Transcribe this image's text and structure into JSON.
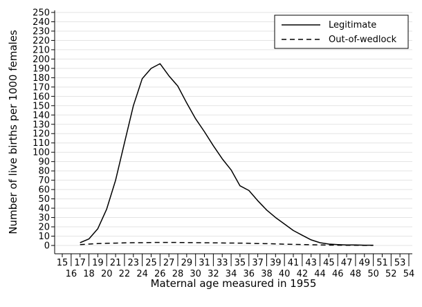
{
  "chart_data": {
    "type": "line",
    "xlabel": "Maternal age measured in 1955",
    "ylabel": "Number of live births per 1000 females",
    "xlim": [
      15,
      54
    ],
    "ylim": [
      0,
      250
    ],
    "x_ticks": [
      15,
      16,
      17,
      18,
      19,
      20,
      21,
      22,
      23,
      24,
      25,
      26,
      27,
      28,
      29,
      30,
      31,
      32,
      33,
      34,
      35,
      36,
      37,
      38,
      39,
      40,
      41,
      42,
      43,
      44,
      45,
      46,
      47,
      48,
      49,
      50,
      51,
      52,
      53,
      54
    ],
    "y_ticks": [
      0,
      10,
      20,
      30,
      40,
      50,
      60,
      70,
      80,
      90,
      100,
      110,
      120,
      130,
      140,
      150,
      160,
      170,
      180,
      190,
      200,
      210,
      220,
      230,
      240,
      250
    ],
    "grid": true,
    "legend_position": "top-right",
    "series": [
      {
        "name": "Legitimate",
        "style": "solid",
        "x": [
          17,
          18,
          19,
          20,
          21,
          22,
          23,
          24,
          25,
          26,
          27,
          28,
          29,
          30,
          31,
          32,
          33,
          34,
          35,
          36,
          37,
          38,
          39,
          40,
          41,
          42,
          43,
          44,
          45,
          46,
          47,
          48,
          49,
          50
        ],
        "values": [
          3,
          7,
          18,
          39,
          70,
          110,
          150,
          179,
          190,
          195,
          182,
          171,
          153,
          136,
          122,
          107,
          93,
          81,
          64,
          59,
          48,
          38,
          30,
          23,
          16,
          11,
          6,
          3,
          1.5,
          1,
          0.5,
          0.5,
          0.3,
          0.3
        ]
      },
      {
        "name": "Out-of-wedlock",
        "style": "dashed",
        "x": [
          17,
          18,
          19,
          20,
          21,
          22,
          23,
          24,
          25,
          26,
          27,
          28,
          29,
          30,
          31,
          32,
          33,
          34,
          35,
          36,
          37,
          38,
          39,
          40,
          41,
          42,
          43,
          44,
          45,
          46,
          47,
          48,
          49,
          50
        ],
        "values": [
          1,
          1.5,
          2,
          2.3,
          2.5,
          2.8,
          3,
          3,
          3.2,
          3.3,
          3.3,
          3.2,
          3.1,
          3,
          2.9,
          2.8,
          2.7,
          2.6,
          2.5,
          2.3,
          2.1,
          1.9,
          1.7,
          1.4,
          1.2,
          1,
          0.8,
          0.6,
          0.4,
          0.3,
          0.2,
          0.2,
          0.1,
          0.1
        ]
      }
    ]
  }
}
